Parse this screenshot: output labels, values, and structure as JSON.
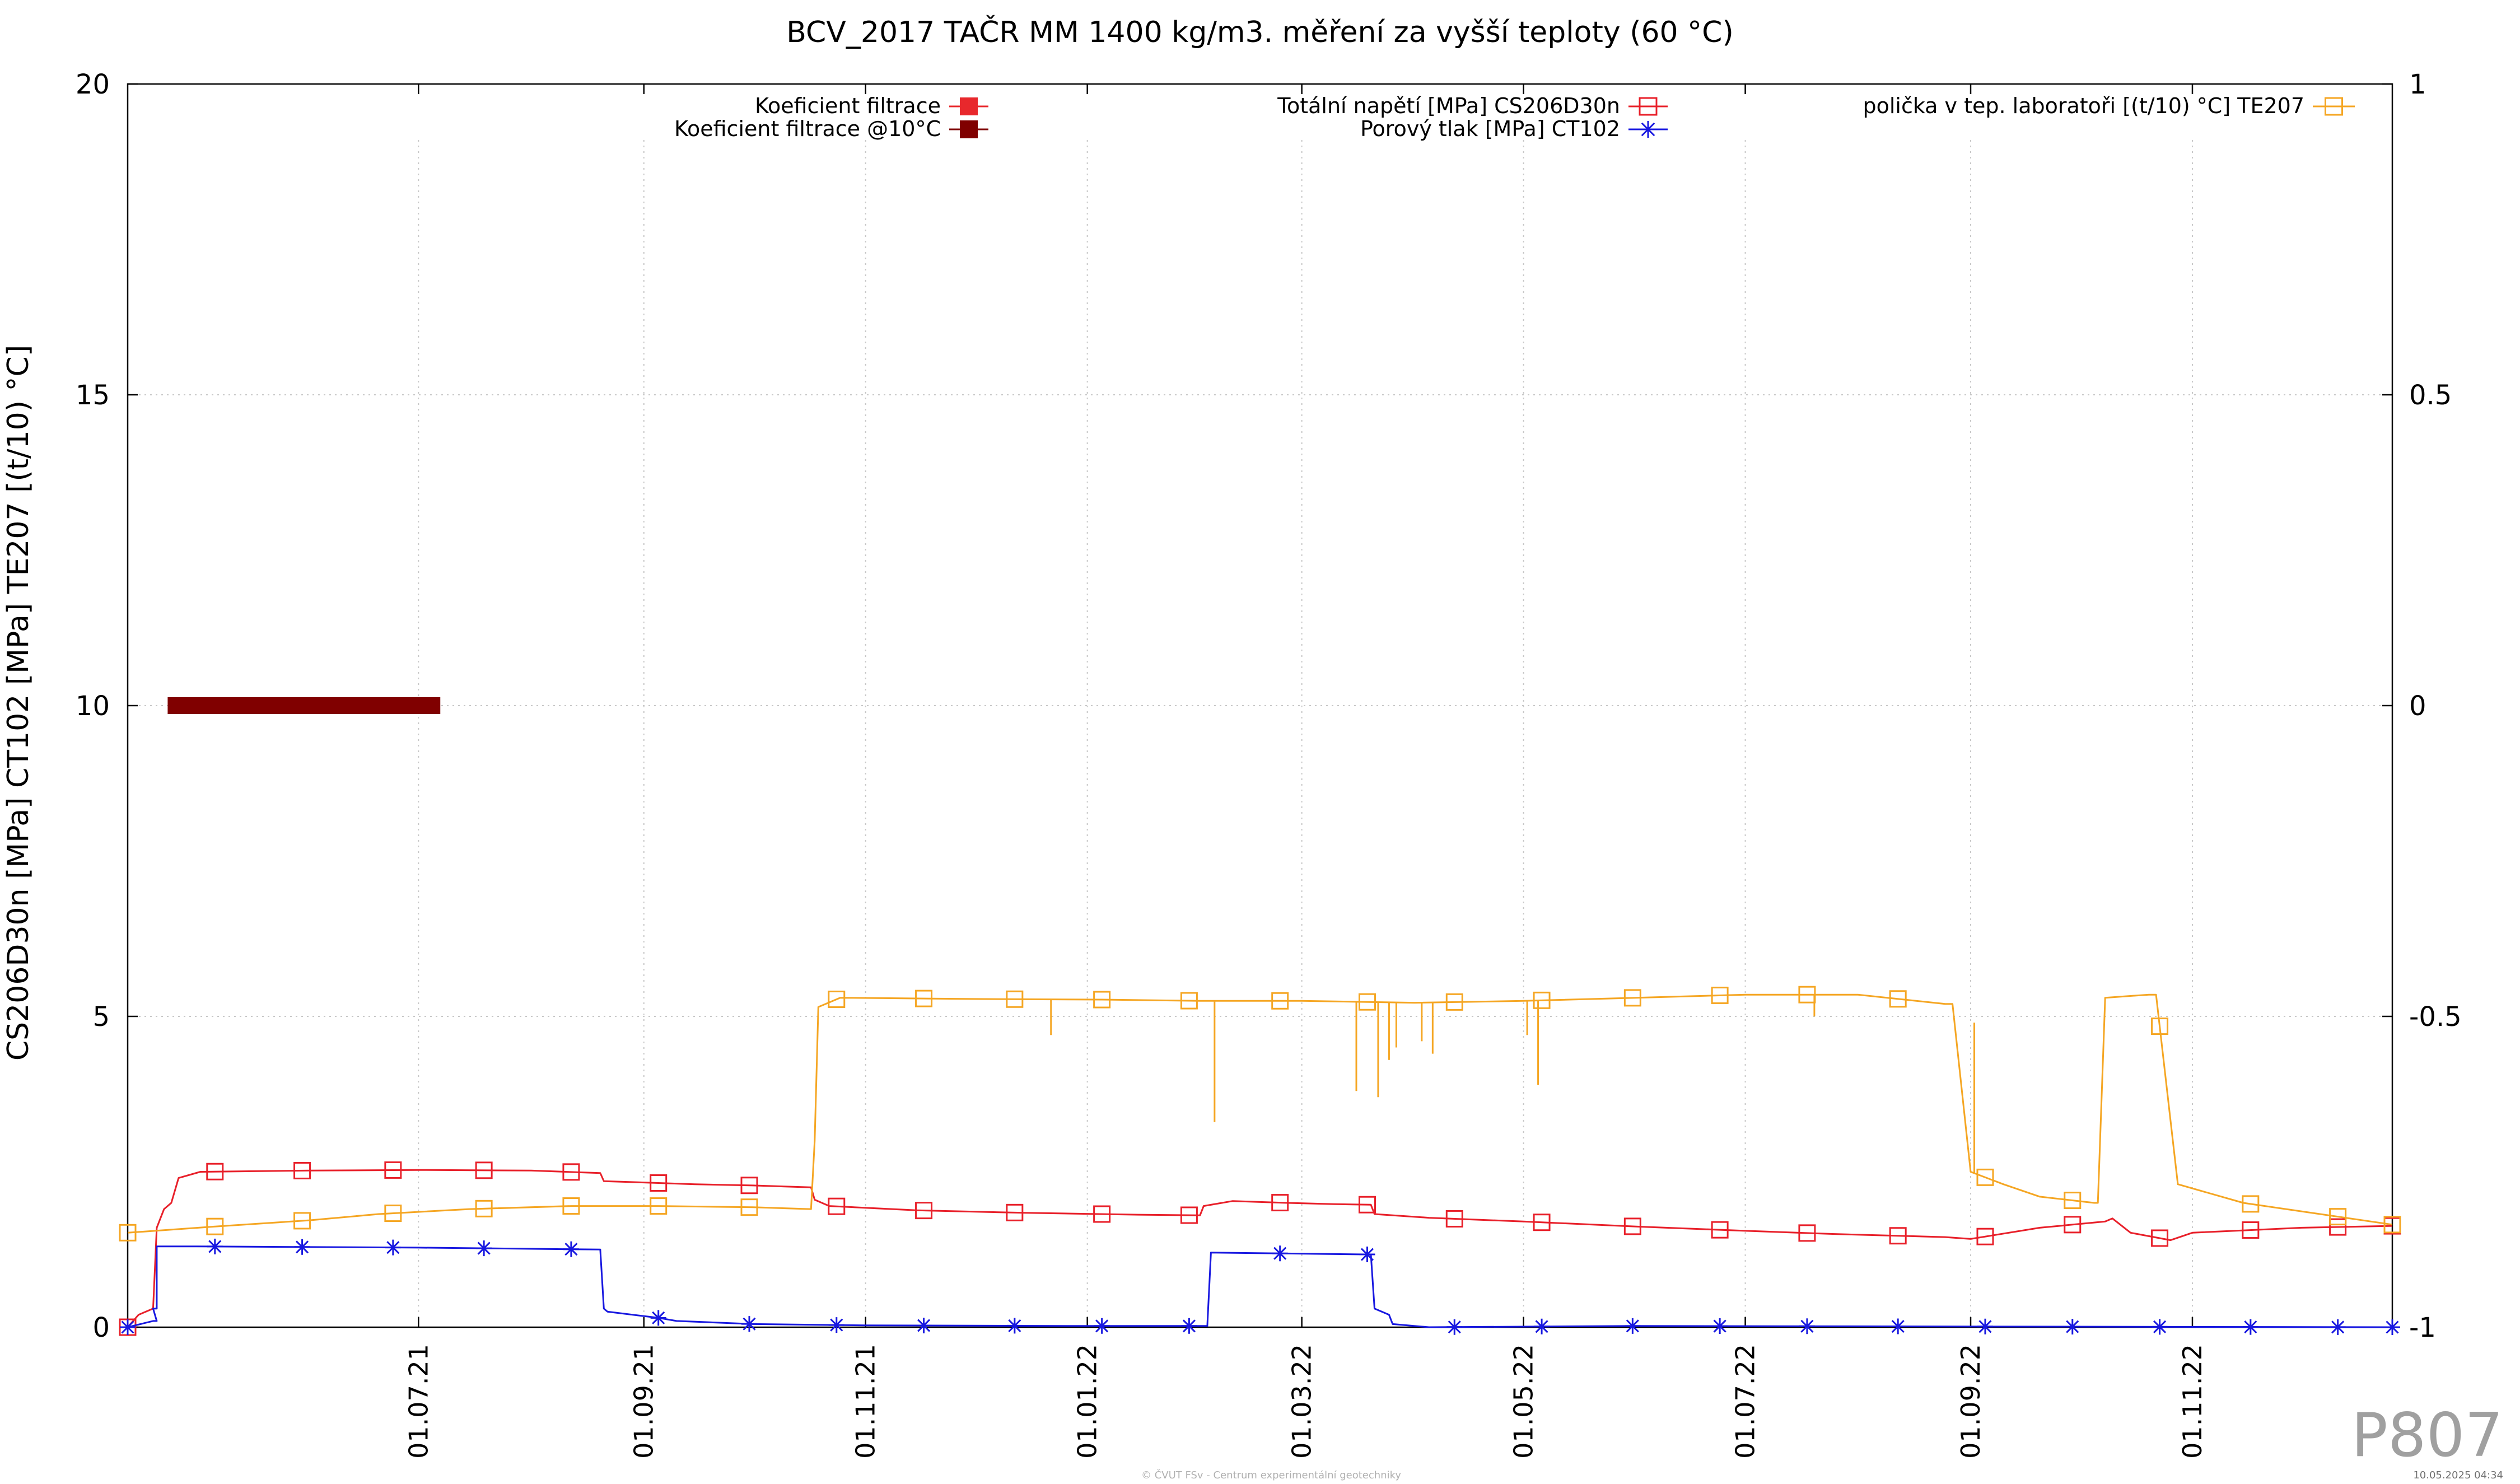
{
  "chart_data": {
    "type": "line",
    "title": "BCV_2017 TAČR MM 1400 kg/m3. měření za vyšší teploty (60 °C)",
    "ylabel": "CS206D30n [MPa] CT102 [MPa] TE207 [(t/10) °C]",
    "x_range": [
      "2021-04-12",
      "2022-12-26"
    ],
    "ylim": [
      0,
      20
    ],
    "y2lim": [
      -1,
      1
    ],
    "grid": true,
    "x_ticks": [
      {
        "label": "01.07.21",
        "date": "2021-07-01"
      },
      {
        "label": "01.09.21",
        "date": "2021-09-01"
      },
      {
        "label": "01.11.21",
        "date": "2021-11-01"
      },
      {
        "label": "01.01.22",
        "date": "2022-01-01"
      },
      {
        "label": "01.03.22",
        "date": "2022-03-01"
      },
      {
        "label": "01.05.22",
        "date": "2022-05-01"
      },
      {
        "label": "01.07.22",
        "date": "2022-07-01"
      },
      {
        "label": "01.09.22",
        "date": "2022-09-01"
      },
      {
        "label": "01.11.22",
        "date": "2022-11-01"
      }
    ],
    "y_ticks": [
      "0",
      "5",
      "10",
      "15",
      "20"
    ],
    "y2_ticks": [
      "-1",
      "-0.5",
      "0",
      "0.5",
      "1"
    ],
    "legend": [
      {
        "label": "Koeficient filtrace",
        "color": "#e8282c",
        "marker": "filled-square"
      },
      {
        "label": "Koeficient filtrace @10°C",
        "color": "#800000",
        "marker": "filled-square"
      },
      {
        "label": "Totální napětí [MPa] CS206D30n",
        "color": "#e8202a",
        "marker": "open-square"
      },
      {
        "label": "Porový tlak [MPa] CT102",
        "color": "#1818e0",
        "marker": "star"
      },
      {
        "label": "polička v tep. laboratoři [(t/10) °C] TE207",
        "color": "#f5a623",
        "marker": "open-square"
      }
    ],
    "series": [
      {
        "name": "Koeficient filtrace @10°C",
        "color": "#800000",
        "style": "thick-bar",
        "x": [
          "2021-04-23",
          "2021-07-07"
        ],
        "y": [
          10,
          10
        ]
      },
      {
        "name": "Totální napětí [MPa] CS206D30n",
        "color": "#e8202a",
        "marker": "open-square",
        "x": [
          "2021-04-12",
          "2021-04-15",
          "2021-04-19",
          "2021-04-20",
          "2021-04-22",
          "2021-04-24",
          "2021-04-26",
          "2021-05-02",
          "2021-06-01",
          "2021-07-01",
          "2021-08-01",
          "2021-08-20",
          "2021-08-21",
          "2021-09-15",
          "2021-10-01",
          "2021-10-17",
          "2021-10-18",
          "2021-10-22",
          "2021-11-15",
          "2021-12-15",
          "2022-01-15",
          "2022-02-01",
          "2022-02-02",
          "2022-02-10",
          "2022-02-25",
          "2022-03-10",
          "2022-03-20",
          "2022-03-21",
          "2022-04-05",
          "2022-05-01",
          "2022-06-01",
          "2022-07-01",
          "2022-07-25",
          "2022-08-25",
          "2022-09-01",
          "2022-09-20",
          "2022-10-08",
          "2022-10-10",
          "2022-10-15",
          "2022-10-26",
          "2022-11-01",
          "2022-12-01",
          "2022-12-26"
        ],
        "y": [
          0.0,
          0.2,
          0.3,
          1.6,
          1.9,
          2.0,
          2.4,
          2.5,
          2.52,
          2.53,
          2.52,
          2.48,
          2.35,
          2.3,
          2.28,
          2.25,
          2.05,
          1.95,
          1.88,
          1.84,
          1.81,
          1.8,
          1.95,
          2.03,
          2.0,
          1.98,
          1.97,
          1.82,
          1.76,
          1.7,
          1.62,
          1.55,
          1.5,
          1.45,
          1.42,
          1.6,
          1.7,
          1.75,
          1.52,
          1.4,
          1.52,
          1.6,
          1.63
        ],
        "markers_x": [
          "2021-04-12",
          "2021-05-06",
          "2021-05-30",
          "2021-06-24",
          "2021-07-19",
          "2021-08-12",
          "2021-09-05",
          "2021-09-30",
          "2021-10-24",
          "2021-11-17",
          "2021-12-12",
          "2022-01-05",
          "2022-01-29",
          "2022-02-23",
          "2022-03-19",
          "2022-04-12",
          "2022-05-06",
          "2022-05-31",
          "2022-06-24",
          "2022-07-18",
          "2022-08-12",
          "2022-09-05",
          "2022-09-29",
          "2022-10-23",
          "2022-11-17",
          "2022-12-11",
          "2023-01-04"
        ]
      },
      {
        "name": "Porový tlak [MPa] CT102",
        "color": "#1818e0",
        "marker": "star",
        "x": [
          "2021-04-12",
          "2021-04-19",
          "2021-04-20",
          "2021-04-19",
          "2021-04-19",
          "2021-04-20",
          "2021-04-20",
          "2021-05-01",
          "2021-07-01",
          "2021-08-20",
          "2021-08-21",
          "2021-08-22",
          "2021-09-05",
          "2021-09-10",
          "2021-10-01",
          "2021-11-01",
          "2022-01-01",
          "2022-02-01",
          "2022-02-03",
          "2022-02-04",
          "2022-03-20",
          "2022-03-21",
          "2022-03-25",
          "2022-03-26",
          "2022-04-05",
          "2022-06-01",
          "2022-12-26"
        ],
        "y": [
          0.0,
          0.1,
          0.1,
          0.3,
          0.3,
          0.3,
          1.3,
          1.3,
          1.28,
          1.25,
          0.3,
          0.25,
          0.15,
          0.1,
          0.05,
          0.03,
          0.02,
          0.02,
          0.02,
          1.2,
          1.17,
          0.3,
          0.2,
          0.05,
          0.0,
          0.02,
          0.0
        ],
        "markers_x": [
          "2021-04-12",
          "2021-05-06",
          "2021-05-30",
          "2021-06-24",
          "2021-07-19",
          "2021-08-12",
          "2021-09-05",
          "2021-09-30",
          "2021-10-24",
          "2021-11-17",
          "2021-12-12",
          "2022-01-05",
          "2022-01-29",
          "2022-02-23",
          "2022-03-19",
          "2022-04-12",
          "2022-05-06",
          "2022-05-31",
          "2022-06-24",
          "2022-07-18",
          "2022-08-12",
          "2022-09-05",
          "2022-09-29",
          "2022-10-23",
          "2022-11-17",
          "2022-12-11",
          "2023-01-04"
        ]
      },
      {
        "name": "polička v tep. laboratoři [(t/10) °C] TE207",
        "color": "#f5a623",
        "marker": "open-square",
        "x": [
          "2021-04-12",
          "2021-05-06",
          "2021-06-01",
          "2021-06-20",
          "2021-07-15",
          "2021-08-12",
          "2021-09-05",
          "2021-10-01",
          "2021-10-17",
          "2021-10-18",
          "2021-10-19",
          "2021-10-25",
          "2021-12-01",
          "2022-01-05",
          "2022-02-01",
          "2022-03-01",
          "2022-04-01",
          "2022-05-01",
          "2022-06-01",
          "2022-07-01",
          "2022-08-01",
          "2022-08-25",
          "2022-08-27",
          "2022-09-01",
          "2022-09-10",
          "2022-09-20",
          "2022-10-05",
          "2022-10-06",
          "2022-10-08",
          "2022-10-20",
          "2022-10-22",
          "2022-10-28",
          "2022-11-15",
          "2022-12-26"
        ],
        "y": [
          1.52,
          1.62,
          1.72,
          1.82,
          1.9,
          1.95,
          1.95,
          1.93,
          1.9,
          3.0,
          5.15,
          5.3,
          5.28,
          5.27,
          5.25,
          5.25,
          5.22,
          5.25,
          5.3,
          5.35,
          5.35,
          5.2,
          5.2,
          2.5,
          2.3,
          2.1,
          2.0,
          2.0,
          5.3,
          5.35,
          5.35,
          2.3,
          2.0,
          1.65
        ],
        "spikes": [
          {
            "x": "2022-02-05",
            "y": 3.3
          },
          {
            "x": "2021-12-22",
            "y": 4.7
          },
          {
            "x": "2022-03-16",
            "y": 3.8
          },
          {
            "x": "2022-03-22",
            "y": 3.7
          },
          {
            "x": "2022-03-25",
            "y": 4.3
          },
          {
            "x": "2022-03-27",
            "y": 4.5
          },
          {
            "x": "2022-04-03",
            "y": 4.6
          },
          {
            "x": "2022-04-06",
            "y": 4.4
          },
          {
            "x": "2022-05-02",
            "y": 4.7
          },
          {
            "x": "2022-05-05",
            "y": 3.9
          },
          {
            "x": "2022-07-20",
            "y": 5.0
          },
          {
            "x": "2022-09-02",
            "y": 4.9
          }
        ],
        "markers_x": [
          "2021-04-12",
          "2021-05-06",
          "2021-05-30",
          "2021-06-24",
          "2021-07-19",
          "2021-08-12",
          "2021-09-05",
          "2021-09-30",
          "2021-10-24",
          "2021-11-17",
          "2021-12-12",
          "2022-01-05",
          "2022-01-29",
          "2022-02-23",
          "2022-03-19",
          "2022-04-12",
          "2022-05-06",
          "2022-05-31",
          "2022-06-24",
          "2022-07-18",
          "2022-08-12",
          "2022-09-05",
          "2022-09-29",
          "2022-10-23",
          "2022-11-17",
          "2022-12-11",
          "2023-01-04"
        ]
      }
    ]
  },
  "watermark": "P807",
  "footer_center": "© ČVUT FSv - Centrum experimentální geotechniky",
  "footer_right": "10.05.2025 04:34"
}
